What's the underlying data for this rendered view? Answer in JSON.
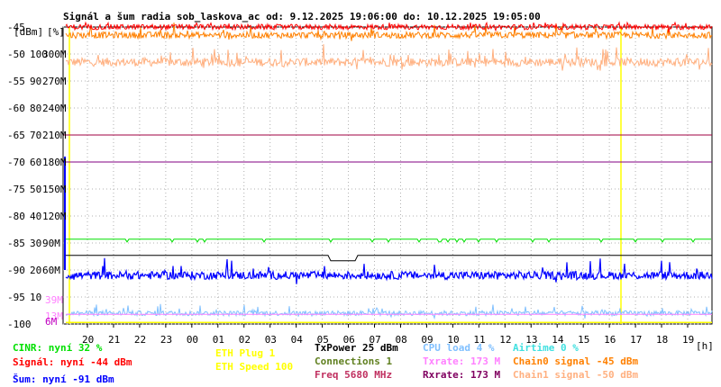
{
  "chart_data": {
    "type": "line",
    "title": "Signál a šum radia sob_laskova_ac od: 9.12.2025 19:06:00 do: 10.12.2025 19:05:00",
    "units_left": "[dBm]",
    "units_mid": "[%]",
    "x_unit": "[h]",
    "x_ticks": [
      "20",
      "21",
      "22",
      "23",
      "00",
      "01",
      "02",
      "03",
      "04",
      "05",
      "06",
      "07",
      "08",
      "09",
      "10",
      "11",
      "12",
      "13",
      "14",
      "15",
      "16",
      "17",
      "18",
      "19"
    ],
    "y_dbm_ticks": [
      "-45",
      "-50",
      "-55",
      "-60",
      "-65",
      "-70",
      "-75",
      "-80",
      "-85",
      "-90",
      "-95",
      "-100"
    ],
    "y_pct_ticks": [
      "100",
      "90",
      "80",
      "70",
      "60",
      "50",
      "40",
      "30",
      "20",
      "10"
    ],
    "y_rate_ticks": [
      "300M",
      "270M",
      "240M",
      "210M",
      "180M",
      "150M",
      "120M",
      "90M",
      "60M"
    ],
    "y_rate_small": [
      "39M",
      "13M",
      "6M"
    ],
    "ylim_dbm": [
      -100,
      -45
    ],
    "reference_lines_dbm": [
      -65,
      -70
    ],
    "series": [
      {
        "name": "Signál",
        "approx_level_dbm": -45,
        "color": "#ff0000"
      },
      {
        "name": "Chain0 signal",
        "approx_level_dbm": -46,
        "color": "#ff8000"
      },
      {
        "name": "Chain1 signal",
        "approx_level_dbm": -51,
        "color": "#ffb080"
      },
      {
        "name": "CINR",
        "approx_level_percent": 32,
        "color": "#00e000"
      },
      {
        "name": "Šum",
        "approx_level_dbm": -91,
        "color": "#0000ff"
      },
      {
        "name": "CPU load",
        "approx_level_percent": 4,
        "color": "#80c0ff"
      },
      {
        "name": "TxPower",
        "approx_level_dbm": -87,
        "color": "#000000"
      }
    ],
    "events_hour_marks": [
      "19",
      "15:40"
    ]
  },
  "legend": [
    {
      "text": "CINR: nyní 32 %",
      "color": "#00e000"
    },
    {
      "text": "Signál: nyní -44 dBm",
      "color": "#ff0000"
    },
    {
      "text": "Šum: nyní -91 dBm",
      "color": "#0000ff"
    },
    {
      "text": "ETH Plug 1",
      "color": "#ffff00"
    },
    {
      "text": "ETH Speed 100",
      "color": "#ffff00"
    },
    {
      "text": "TxPower 25 dBm",
      "color": "#000000"
    },
    {
      "text": "Connections 1",
      "color": "#608020"
    },
    {
      "text": "Freq 5680 MHz",
      "color": "#c03060"
    },
    {
      "text": "CPU load 4 %",
      "color": "#80c0ff"
    },
    {
      "text": "Txrate: 173 M",
      "color": "#ff80ff"
    },
    {
      "text": "Rxrate: 173 M",
      "color": "#800060"
    },
    {
      "text": "Airtime 0 %",
      "color": "#40e0e0"
    },
    {
      "text": "Chain0 signal -45 dBm",
      "color": "#ff8000"
    },
    {
      "text": "Chain1 signal -50 dBm",
      "color": "#ffb080"
    }
  ]
}
